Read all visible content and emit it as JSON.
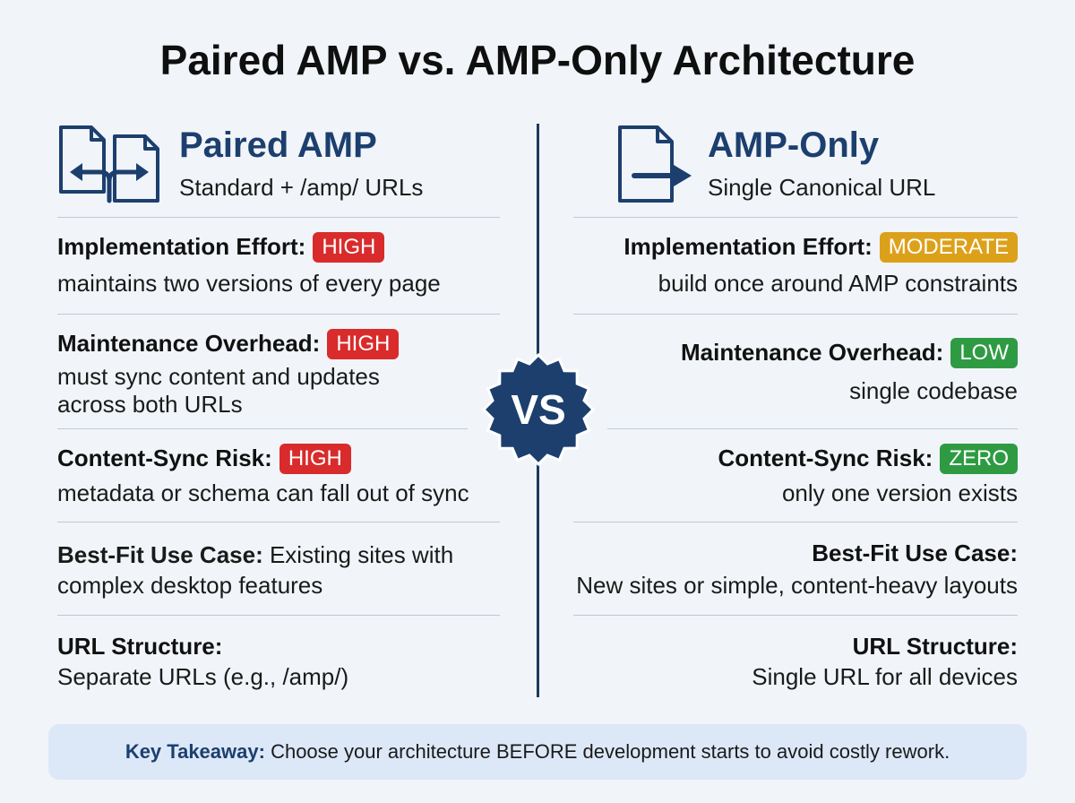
{
  "title": "Paired AMP vs. AMP-Only Architecture",
  "vs_label": "VS",
  "left": {
    "icon": "split-arrows-document-icon",
    "title": "Paired AMP",
    "subtitle": "Standard + /amp/ URLs",
    "rows": [
      {
        "label": "Implementation Effort:",
        "badge": "HIGH",
        "text": "maintains two versions of every page"
      },
      {
        "label": "Maintenance Overhead:",
        "badge": "HIGH",
        "text": "must sync content and updates across both URLs"
      },
      {
        "label": "Content-Sync Risk:",
        "badge": "HIGH",
        "text": "metadata or schema can fall out of sync"
      },
      {
        "label": "Best-Fit Use Case:",
        "text": "Existing sites with complex desktop features"
      },
      {
        "label": "URL Structure:",
        "text": "Separate URLs (e.g., /amp/)"
      }
    ]
  },
  "right": {
    "icon": "arrow-document-icon",
    "title": "AMP-Only",
    "subtitle": "Single Canonical URL",
    "rows": [
      {
        "label": "Implementation Effort:",
        "badge": "MODERATE",
        "text": "build once around AMP constraints"
      },
      {
        "label": "Maintenance Overhead:",
        "badge": "LOW",
        "text": "single codebase"
      },
      {
        "label": "Content-Sync Risk:",
        "badge": "ZERO",
        "text": "only one version exists"
      },
      {
        "label": "Best-Fit Use Case:",
        "text": "New sites or simple, content-heavy layouts"
      },
      {
        "label": "URL Structure:",
        "text": "Single URL for all devices"
      }
    ]
  },
  "takeaway": {
    "label": "Key Takeaway:",
    "text": "Choose your architecture BEFORE development starts to avoid costly rework."
  },
  "colors": {
    "navy": "#1c3f6e",
    "high": "#d92b2b",
    "moderate": "#dca11a",
    "low": "#2e9b43",
    "background": "#f1f5f9",
    "takeaway_bg": "#dce8f8"
  }
}
